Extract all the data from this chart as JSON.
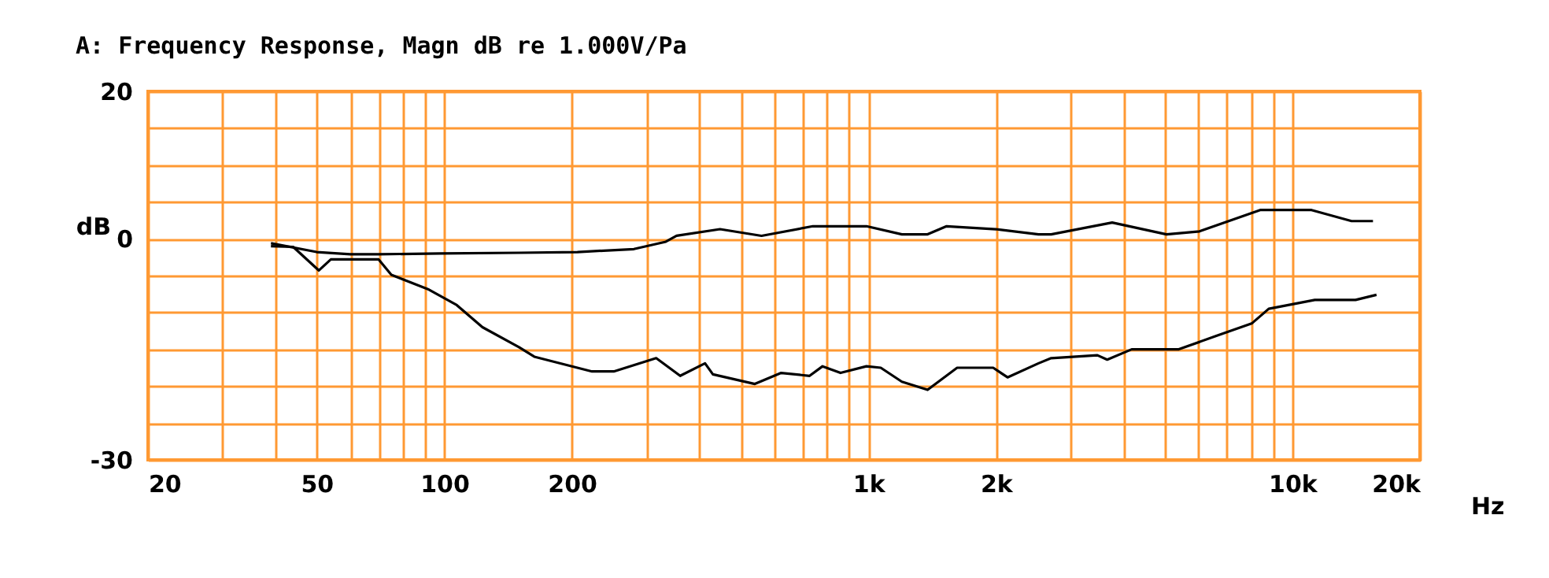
{
  "chart_data": {
    "type": "line",
    "title": "A: Frequency Response, Magn dB re 1.000V/Pa",
    "xlabel": "Hz",
    "ylabel": "dB",
    "log": "x",
    "grid": true,
    "marker": "none",
    "line_style": "solid",
    "xlim": [
      20,
      20000
    ],
    "ylim": [
      -30,
      20
    ],
    "xticks": [
      20,
      {
        "value": 30,
        "label": null
      },
      {
        "value": 40,
        "label": null
      },
      50,
      {
        "value": 60,
        "label": null
      },
      {
        "value": 70,
        "label": null
      },
      {
        "value": 80,
        "label": null
      },
      {
        "value": 90,
        "label": null
      },
      100,
      200,
      {
        "value": 300,
        "label": null
      },
      {
        "value": 400,
        "label": null
      },
      {
        "value": 500,
        "label": null
      },
      {
        "value": 600,
        "label": null
      },
      {
        "value": 700,
        "label": null
      },
      {
        "value": 800,
        "label": null
      },
      {
        "value": 900,
        "label": null
      },
      {
        "value": 1000,
        "label": "1k"
      },
      {
        "value": 2000,
        "label": "2k"
      },
      {
        "value": 3000,
        "label": null
      },
      {
        "value": 4000,
        "label": null
      },
      {
        "value": 5000,
        "label": null
      },
      {
        "value": 6000,
        "label": null
      },
      {
        "value": 7000,
        "label": null
      },
      {
        "value": 8000,
        "label": null
      },
      {
        "value": 9000,
        "label": null
      },
      {
        "value": 10000,
        "label": "10k"
      },
      {
        "value": 20000,
        "label": "20k"
      }
    ],
    "yticks": [
      -30,
      {
        "value": -25,
        "label": null
      },
      {
        "value": -20,
        "label": null
      },
      {
        "value": -15,
        "label": null
      },
      {
        "value": -10,
        "label": null
      },
      {
        "value": -5,
        "label": null
      },
      0,
      {
        "value": 5,
        "label": null
      },
      {
        "value": 10,
        "label": null
      },
      {
        "value": 15,
        "label": null
      },
      20
    ],
    "series": [
      {
        "color": "#000000",
        "x": [
          39,
          50,
          60,
          70,
          98,
          150,
          206,
          280,
          333,
          353,
          447,
          560,
          740,
          990,
          1200,
          1380,
          1530,
          2000,
          2520,
          2700,
          3760,
          5050,
          6040,
          8400,
          11100,
          13800,
          15500
        ],
        "values": [
          -0.6,
          -1.8,
          -2.1,
          -2.1,
          -2,
          -1.9,
          -1.8,
          -1.4,
          -0.4,
          0.4,
          1.3,
          0.4,
          1.7,
          1.7,
          0.6,
          0.6,
          1.7,
          1.3,
          0.6,
          0.6,
          2.2,
          0.6,
          1,
          3.9,
          3.9,
          2.4,
          2.4
        ]
      },
      {
        "color": "#000000",
        "x": [
          39,
          44,
          50.6,
          54,
          70,
          75,
          92,
          107,
          123,
          150,
          163,
          223,
          251,
          316,
          360,
          412,
          430,
          540,
          623,
          727,
          780,
          860,
          990,
          1070,
          1200,
          1380,
          1620,
          1970,
          2130,
          2520,
          2700,
          3470,
          3660,
          4180,
          5400,
          6600,
          8020,
          8800,
          11300,
          14100,
          15800
        ],
        "values": [
          -1,
          -1.1,
          -4.3,
          -2.8,
          -2.8,
          -4.9,
          -6.9,
          -9,
          -12,
          -14.7,
          -16,
          -18,
          -18,
          -16.2,
          -18.6,
          -16.9,
          -18.4,
          -19.7,
          -18.2,
          -18.6,
          -17.3,
          -18.2,
          -17.3,
          -17.5,
          -19.4,
          -20.5,
          -17.5,
          -17.5,
          -18.8,
          -16.9,
          -16.2,
          -15.8,
          -16.4,
          -15,
          -15,
          -13.2,
          -11.5,
          -9.5,
          -8.3,
          -8.3,
          -7.6
        ]
      }
    ]
  }
}
